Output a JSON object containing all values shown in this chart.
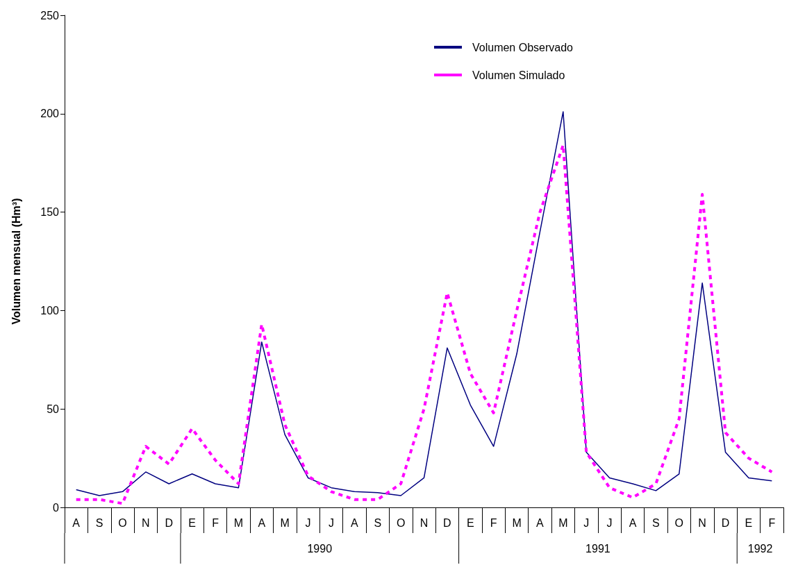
{
  "chart_data": {
    "type": "line",
    "ylabel": "Volumen mensual (Hm³)",
    "categories": [
      "A",
      "S",
      "O",
      "N",
      "D",
      "E",
      "F",
      "M",
      "A",
      "M",
      "J",
      "J",
      "A",
      "S",
      "O",
      "N",
      "D",
      "E",
      "F",
      "M",
      "A",
      "M",
      "J",
      "J",
      "A",
      "S",
      "O",
      "N",
      "D",
      "E",
      "F"
    ],
    "series": [
      {
        "name": "Volumen Observado",
        "color": "#000080",
        "line_style": "solid",
        "values": [
          9,
          6,
          8,
          18,
          12,
          17,
          12,
          10,
          84,
          37,
          15,
          10,
          8,
          7.5,
          6,
          15,
          81,
          52,
          31,
          78,
          140,
          201,
          28,
          15,
          12,
          8.5,
          17,
          114,
          28,
          15,
          13.5
        ]
      },
      {
        "name": "Volumen Simulado",
        "color": "#ff00ff",
        "line_style": "dashed",
        "values": [
          4,
          4,
          2,
          31,
          22,
          40,
          24,
          12,
          93,
          42,
          16,
          8,
          4,
          4,
          12,
          50,
          109,
          68,
          48,
          100,
          150,
          184,
          28,
          10,
          5,
          12,
          45,
          159,
          38,
          25,
          18
        ]
      }
    ],
    "annotations": [
      "1990",
      "1991",
      "1992"
    ],
    "ylim": [
      0,
      250
    ],
    "yticks": [
      0,
      50,
      100,
      150,
      200,
      250
    ],
    "grid": false,
    "legend": "top right",
    "marker": "none"
  }
}
